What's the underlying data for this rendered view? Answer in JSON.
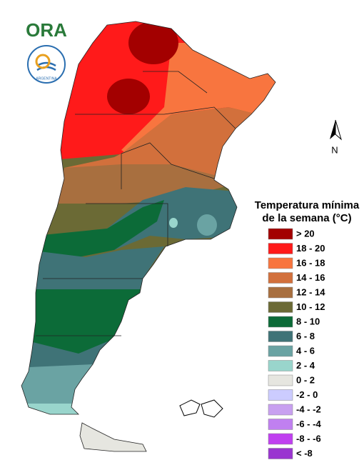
{
  "map": {
    "logo": "ORA",
    "logo_ring": "ARGENTINA",
    "north": "N",
    "title": [
      "Temperatura mínima",
      "de la semana (°C)"
    ],
    "legend": [
      {
        "label": "> 20",
        "color": "#a30000"
      },
      {
        "label": "18 - 20",
        "color": "#ff1a1a"
      },
      {
        "label": "16 - 18",
        "color": "#f8753f"
      },
      {
        "label": "14 - 16",
        "color": "#d2703c"
      },
      {
        "label": "12 - 14",
        "color": "#a86f3f"
      },
      {
        "label": "10 - 12",
        "color": "#6b6a35"
      },
      {
        "label": "8 - 10",
        "color": "#0c6b38"
      },
      {
        "label": "6 - 8",
        "color": "#3f7377"
      },
      {
        "label": "4 - 6",
        "color": "#6aa3a3"
      },
      {
        "label": "2 - 4",
        "color": "#99d5cc"
      },
      {
        "label": "0 - 2",
        "color": "#e6e6e0"
      },
      {
        "label": "-2 - 0",
        "color": "#ccccff"
      },
      {
        "label": "-4 - -2",
        "color": "#c8a0f0"
      },
      {
        "label": "-6 - -4",
        "color": "#c080f0"
      },
      {
        "label": "-8 - -6",
        "color": "#c040f0"
      },
      {
        "label": "< -8",
        "color": "#9a35d0"
      }
    ]
  }
}
